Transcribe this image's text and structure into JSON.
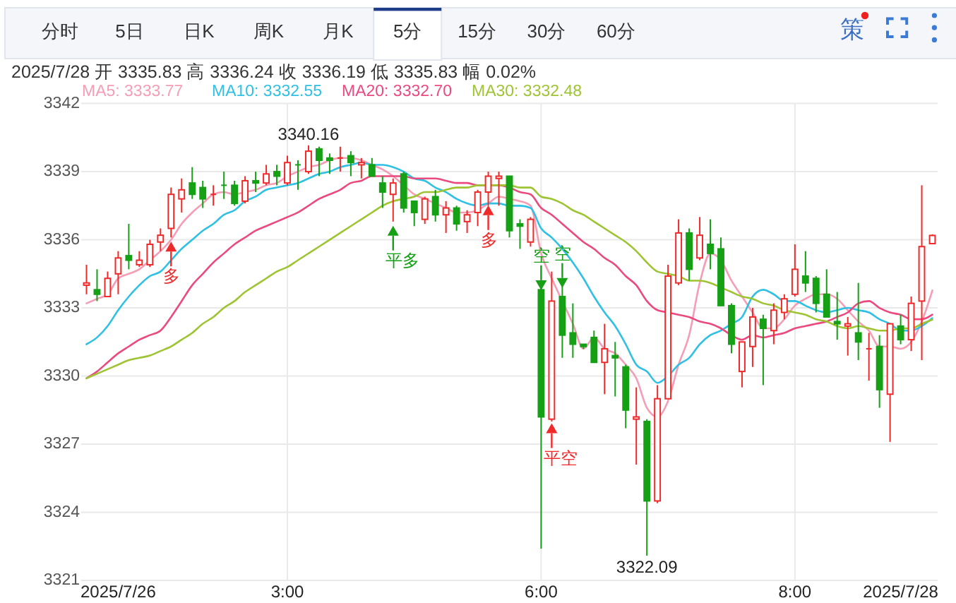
{
  "chart_data": {
    "type": "candlestick",
    "subtitle": "2025/7/28 开 3335.83 高 3336.24 收 3336.19 低 3335.83 幅 0.02%",
    "categories": [
      null,
      null,
      null,
      "2025/7/26",
      null,
      null,
      null,
      null,
      null,
      null,
      null,
      null,
      null,
      null,
      null,
      null,
      null,
      null,
      null,
      "3:00",
      null,
      null,
      null,
      null,
      null,
      null,
      null,
      null,
      null,
      null,
      null,
      null,
      null,
      null,
      null,
      null,
      null,
      null,
      null,
      null,
      null,
      null,
      null,
      "6:00",
      null,
      null,
      null,
      null,
      null,
      null,
      null,
      null,
      null,
      null,
      null,
      null,
      null,
      null,
      null,
      null,
      null,
      null,
      null,
      null,
      null,
      null,
      null,
      "8:00",
      null,
      null,
      null,
      null,
      null,
      null,
      null,
      null,
      null,
      "2025/7/28",
      null,
      null,
      null
    ],
    "ohlc": [
      [
        3334.0,
        3334.9,
        3333.6,
        3334.1
      ],
      [
        3333.8,
        3334.7,
        3333.3,
        3333.6
      ],
      [
        3333.5,
        3334.6,
        3333.5,
        3334.3
      ],
      [
        3334.5,
        3335.5,
        3333.6,
        3335.2
      ],
      [
        3335.3,
        3336.7,
        3334.7,
        3335.1
      ],
      [
        3334.9,
        3335.5,
        3334.8,
        3335.1
      ],
      [
        3334.9,
        3336.0,
        3334.8,
        3335.8
      ],
      [
        3335.9,
        3336.5,
        3335.5,
        3336.2
      ],
      [
        3336.5,
        3338.3,
        3336.1,
        3338.0
      ],
      [
        3337.8,
        3338.7,
        3337.2,
        3338.2
      ],
      [
        3338.5,
        3339.2,
        3337.8,
        3338.0
      ],
      [
        3338.3,
        3338.6,
        3337.4,
        3337.8
      ],
      [
        3338.0,
        3338.4,
        3337.5,
        3338.0
      ],
      [
        3338.4,
        3339.0,
        3337.8,
        3338.4
      ],
      [
        3338.4,
        3338.6,
        3337.5,
        3337.6
      ],
      [
        3337.7,
        3338.8,
        3337.6,
        3338.6
      ],
      [
        3338.6,
        3339.0,
        3338.1,
        3338.5
      ],
      [
        3338.5,
        3339.3,
        3338.4,
        3338.9
      ],
      [
        3339.0,
        3339.3,
        3338.4,
        3338.8
      ],
      [
        3338.5,
        3339.7,
        3338.4,
        3339.4
      ],
      [
        3339.3,
        3339.5,
        3338.2,
        3339.3
      ],
      [
        3339.0,
        3340.16,
        3338.9,
        3339.9
      ],
      [
        3340.0,
        3340.1,
        3338.8,
        3339.5
      ],
      [
        3339.6,
        3339.8,
        3338.9,
        3339.5
      ],
      [
        3339.6,
        3340.1,
        3339.0,
        3339.6
      ],
      [
        3339.7,
        3339.9,
        3338.8,
        3339.4
      ],
      [
        3339.3,
        3339.6,
        3338.7,
        3339.4
      ],
      [
        3339.3,
        3339.6,
        3338.8,
        3338.8
      ],
      [
        3338.5,
        3338.8,
        3337.4,
        3338.1
      ],
      [
        3338.0,
        3338.7,
        3336.8,
        3338.5
      ],
      [
        3338.9,
        3339.0,
        3337.2,
        3337.4
      ],
      [
        3337.7,
        3337.7,
        3336.6,
        3337.2
      ],
      [
        3336.9,
        3337.9,
        3336.7,
        3337.8
      ],
      [
        3337.9,
        3338.2,
        3336.8,
        3337.1
      ],
      [
        3337.1,
        3337.7,
        3336.3,
        3337.4
      ],
      [
        3337.4,
        3337.5,
        3336.4,
        3336.7
      ],
      [
        3336.8,
        3337.3,
        3336.3,
        3337.1
      ],
      [
        3337.2,
        3338.2,
        3336.6,
        3338.1
      ],
      [
        3338.1,
        3339.0,
        3337.5,
        3338.8
      ],
      [
        3338.7,
        3339.0,
        3337.5,
        3338.8
      ],
      [
        3338.8,
        3338.8,
        3336.1,
        3336.4
      ],
      [
        3336.7,
        3336.9,
        3335.6,
        3336.6
      ],
      [
        3335.9,
        3337.0,
        3335.7,
        3336.9
      ],
      [
        3333.8,
        3333.9,
        3322.4,
        3328.2
      ],
      [
        3328.1,
        3334.6,
        3328.0,
        3333.3
      ],
      [
        3333.5,
        3334.0,
        3330.8,
        3331.8
      ],
      [
        3331.9,
        3333.2,
        3330.8,
        3331.4
      ],
      [
        3331.4,
        3331.4,
        3331.2,
        3331.3
      ],
      [
        3331.7,
        3332.0,
        3330.6,
        3330.6
      ],
      [
        3330.6,
        3332.3,
        3329.2,
        3331.2
      ],
      [
        3330.9,
        3331.5,
        3329.1,
        3330.8
      ],
      [
        3330.4,
        3330.5,
        3327.7,
        3328.5
      ],
      [
        3328.1,
        3329.5,
        3326.1,
        3328.2
      ],
      [
        3328.0,
        3328.1,
        3322.09,
        3324.5
      ],
      [
        3324.5,
        3329.6,
        3324.4,
        3329.0
      ],
      [
        3329.0,
        3334.9,
        3329.0,
        3334.4
      ],
      [
        3334.1,
        3336.9,
        3334.0,
        3336.3
      ],
      [
        3336.3,
        3336.5,
        3334.2,
        3334.7
      ],
      [
        3335.2,
        3337.0,
        3335.1,
        3336.2
      ],
      [
        3335.8,
        3336.9,
        3334.7,
        3335.4
      ],
      [
        3335.6,
        3336.1,
        3333.1,
        3333.1
      ],
      [
        3333.1,
        3333.2,
        3331.0,
        3331.4
      ],
      [
        3330.2,
        3331.5,
        3329.5,
        3331.5
      ],
      [
        3331.3,
        3333.0,
        3330.4,
        3332.6
      ],
      [
        3332.5,
        3332.7,
        3329.6,
        3332.1
      ],
      [
        3332.0,
        3333.2,
        3331.4,
        3332.9
      ],
      [
        3332.8,
        3333.6,
        3332.5,
        3333.4
      ],
      [
        3333.6,
        3335.8,
        3333.5,
        3334.7
      ],
      [
        3334.4,
        3335.5,
        3333.7,
        3334.1
      ],
      [
        3334.3,
        3334.4,
        3332.8,
        3333.2
      ],
      [
        3333.6,
        3334.7,
        3332.6,
        3332.6
      ],
      [
        3332.4,
        3333.7,
        3331.6,
        3332.3
      ],
      [
        3332.2,
        3332.6,
        3330.9,
        3332.3
      ],
      [
        3331.9,
        3334.1,
        3330.7,
        3331.5
      ],
      [
        3331.2,
        3331.9,
        3329.8,
        3331.2
      ],
      [
        3331.3,
        3331.8,
        3328.6,
        3329.4
      ],
      [
        3329.2,
        3332.3,
        3327.1,
        3332.3
      ],
      [
        3332.2,
        3332.7,
        3331.4,
        3331.6
      ],
      [
        3331.6,
        3333.5,
        3331.1,
        3333.2
      ],
      [
        3333.3,
        3338.4,
        3330.7,
        3335.7
      ],
      [
        3335.83,
        3336.24,
        3335.83,
        3336.19
      ]
    ],
    "colors": [
      "#f02a2a",
      "#15a015",
      "#f02a2a",
      "#f02a2a",
      "#15a015",
      "#f02a2a",
      "#f02a2a",
      "#f02a2a",
      "#f02a2a",
      "#f02a2a",
      "#15a015",
      "#15a015",
      "#f02a2a",
      "#15a015",
      "#15a015",
      "#f02a2a",
      "#15a015",
      "#f02a2a",
      "#15a015",
      "#f02a2a",
      "#15a015",
      "#f02a2a",
      "#15a015",
      "#15a015",
      "#f02a2a",
      "#15a015",
      "#f02a2a",
      "#15a015",
      "#15a015",
      "#f02a2a",
      "#15a015",
      "#15a015",
      "#f02a2a",
      "#15a015",
      "#f02a2a",
      "#15a015",
      "#f02a2a",
      "#f02a2a",
      "#f02a2a",
      "#f02a2a",
      "#15a015",
      "#15a015",
      "#f02a2a",
      "#15a015",
      "#f02a2a",
      "#15a015",
      "#15a015",
      "#15a015",
      "#15a015",
      "#f02a2a",
      "#15a015",
      "#15a015",
      "#f02a2a",
      "#15a015",
      "#f02a2a",
      "#f02a2a",
      "#f02a2a",
      "#15a015",
      "#f02a2a",
      "#15a015",
      "#15a015",
      "#15a015",
      "#f02a2a",
      "#f02a2a",
      "#15a015",
      "#f02a2a",
      "#f02a2a",
      "#f02a2a",
      "#15a015",
      "#15a015",
      "#15a015",
      "#15a015",
      "#f02a2a",
      "#15a015",
      "#f02a2a",
      "#15a015",
      "#f02a2a",
      "#15a015",
      "#f02a2a",
      "#f02a2a",
      "#f02a2a"
    ],
    "series": [
      {
        "type": "line",
        "name": "MA5: 3333.77",
        "color": "#f59db5",
        "values": [
          3333.2,
          3333.4,
          3333.6,
          3334.3,
          3334.5,
          3334.7,
          3335.1,
          3335.5,
          3336.0,
          3336.7,
          3337.2,
          3337.6,
          3338.0,
          3338.1,
          3338.0,
          3338.1,
          3338.2,
          3338.4,
          3338.5,
          3338.8,
          3339.0,
          3339.2,
          3339.3,
          3339.5,
          3339.6,
          3339.6,
          3339.5,
          3339.3,
          3339.1,
          3338.8,
          3338.4,
          3338.0,
          3337.8,
          3337.6,
          3337.4,
          3337.2,
          3337.2,
          3337.3,
          3337.6,
          3337.9,
          3337.8,
          3337.7,
          3337.5,
          3335.4,
          3334.3,
          3333.3,
          3332.3,
          3331.2,
          3331.7,
          3331.2,
          3331.0,
          3330.5,
          3329.9,
          3328.6,
          3328.2,
          3328.9,
          3330.5,
          3331.8,
          3334.1,
          3335.4,
          3335.1,
          3334.2,
          3333.5,
          3332.8,
          3332.1,
          3332.1,
          3332.5,
          3333.1,
          3333.4,
          3333.6,
          3333.6,
          3333.4,
          3332.9,
          3332.4,
          3332.0,
          3331.3,
          3331.3,
          3331.2,
          3331.5,
          3332.4,
          3333.77
        ]
      },
      {
        "type": "line",
        "name": "MA10: 3332.55",
        "color": "#2fc0e4",
        "values": [
          3331.4,
          3331.7,
          3332.2,
          3332.9,
          3333.5,
          3334.0,
          3334.4,
          3334.6,
          3335.1,
          3335.6,
          3336.0,
          3336.4,
          3336.7,
          3337.1,
          3337.3,
          3337.7,
          3337.9,
          3338.2,
          3338.3,
          3338.4,
          3338.5,
          3338.7,
          3338.9,
          3339.0,
          3339.2,
          3339.3,
          3339.4,
          3339.3,
          3339.3,
          3339.2,
          3339.0,
          3338.7,
          3338.6,
          3338.3,
          3338.1,
          3337.8,
          3337.6,
          3337.5,
          3337.6,
          3337.6,
          3337.5,
          3337.5,
          3337.4,
          3336.5,
          3336.1,
          3335.6,
          3335.0,
          3334.3,
          3333.5,
          3332.8,
          3332.2,
          3331.4,
          3330.5,
          3330.2,
          3329.7,
          3330.0,
          3330.5,
          3330.8,
          3331.4,
          3331.8,
          3332.0,
          3332.3,
          3332.6,
          3333.5,
          3333.8,
          3333.6,
          3333.3,
          3333.3,
          3333.1,
          3332.9,
          3332.8,
          3332.9,
          3333.0,
          3332.9,
          3332.8,
          3332.5,
          3332.3,
          3332.0,
          3332.0,
          3332.2,
          3332.55
        ]
      },
      {
        "type": "line",
        "name": "MA20: 3332.70",
        "color": "#ea4a7e",
        "values": [
          3329.9,
          3330.2,
          3330.6,
          3331.0,
          3331.3,
          3331.6,
          3331.8,
          3332.0,
          3332.6,
          3333.3,
          3334.0,
          3334.5,
          3335.0,
          3335.4,
          3335.8,
          3336.1,
          3336.4,
          3336.6,
          3336.8,
          3337.0,
          3337.2,
          3337.5,
          3337.8,
          3338.0,
          3338.2,
          3338.5,
          3338.6,
          3338.8,
          3338.8,
          3338.8,
          3338.8,
          3338.7,
          3338.7,
          3338.7,
          3338.6,
          3338.5,
          3338.5,
          3338.4,
          3338.4,
          3338.4,
          3338.3,
          3338.1,
          3338.0,
          3337.4,
          3337.1,
          3336.7,
          3336.3,
          3335.9,
          3335.6,
          3335.2,
          3334.9,
          3334.4,
          3334.0,
          3333.3,
          3332.9,
          3332.8,
          3332.7,
          3332.6,
          3332.4,
          3332.3,
          3332.1,
          3331.8,
          3331.6,
          3331.8,
          3331.7,
          3331.8,
          3331.9,
          3332.1,
          3332.2,
          3332.3,
          3332.4,
          3332.6,
          3332.8,
          3333.2,
          3333.3,
          3333.0,
          3332.8,
          3332.7,
          3332.5,
          3332.5,
          3332.7
        ]
      },
      {
        "type": "line",
        "name": "MA30: 3332.48",
        "color": "#9fc433",
        "values": [
          3329.9,
          3330.1,
          3330.3,
          3330.5,
          3330.7,
          3330.8,
          3330.9,
          3331.1,
          3331.3,
          3331.6,
          3331.9,
          3332.3,
          3332.6,
          3333.0,
          3333.3,
          3333.7,
          3334.0,
          3334.3,
          3334.6,
          3334.8,
          3335.1,
          3335.4,
          3335.7,
          3336.0,
          3336.3,
          3336.6,
          3336.9,
          3337.2,
          3337.5,
          3337.7,
          3337.8,
          3337.9,
          3338.1,
          3338.1,
          3338.2,
          3338.3,
          3338.3,
          3338.4,
          3338.4,
          3338.4,
          3338.4,
          3338.3,
          3338.3,
          3337.9,
          3337.8,
          3337.6,
          3337.3,
          3337.1,
          3336.8,
          3336.5,
          3336.2,
          3335.9,
          3335.5,
          3335.0,
          3334.6,
          3334.5,
          3334.4,
          3334.2,
          3334.2,
          3334.1,
          3333.9,
          3333.7,
          3333.5,
          3333.4,
          3333.2,
          3333.1,
          3332.9,
          3332.8,
          3332.7,
          3332.5,
          3332.4,
          3332.2,
          3332.1,
          3332.2,
          3332.1,
          3332.0,
          3332.0,
          3332.1,
          3332.1,
          3332.3,
          3332.48
        ]
      },
      {
        "type": "scatter",
        "color": "#f02a2a",
        "marker": "triangle",
        "values": [
          null,
          null,
          null,
          null,
          null,
          null,
          null,
          null,
          3335.7,
          null,
          null,
          null,
          null,
          null,
          null,
          null,
          null,
          null,
          null,
          null,
          null,
          null,
          null,
          null,
          null,
          null,
          null,
          null,
          null,
          null,
          null,
          null,
          null,
          null,
          null,
          null,
          null,
          null,
          3337.3,
          null,
          null,
          null,
          null,
          null,
          null,
          null,
          null,
          null,
          null,
          null,
          null,
          null,
          null,
          null,
          null,
          null,
          null,
          null,
          null,
          null,
          null,
          null,
          null,
          null,
          null,
          null,
          null,
          null,
          null,
          null,
          null,
          null,
          null,
          null,
          null,
          null,
          null,
          null,
          null,
          null,
          null
        ],
        "value_labels": [
          null,
          null,
          null,
          null,
          null,
          null,
          null,
          null,
          "多",
          null,
          null,
          null,
          null,
          null,
          null,
          null,
          null,
          null,
          null,
          null,
          null,
          null,
          null,
          null,
          null,
          null,
          null,
          null,
          null,
          null,
          null,
          null,
          null,
          null,
          null,
          null,
          null,
          null,
          "多",
          null,
          null,
          null,
          null,
          null,
          null,
          null,
          null,
          null,
          null,
          null,
          null,
          null,
          null,
          null,
          null,
          null,
          null,
          null,
          null,
          null,
          null,
          null,
          null,
          null,
          null,
          null,
          null,
          null,
          null,
          null,
          null,
          null,
          null,
          null,
          null,
          null,
          null,
          null,
          null,
          null,
          null
        ]
      },
      {
        "type": "scatter",
        "color": "#15a015",
        "marker": "triangle",
        "values": [
          null,
          null,
          null,
          null,
          null,
          null,
          null,
          null,
          null,
          null,
          null,
          null,
          null,
          null,
          null,
          null,
          null,
          null,
          null,
          null,
          null,
          null,
          null,
          null,
          null,
          null,
          null,
          null,
          null,
          3336.4,
          null,
          null,
          null,
          null,
          null,
          null,
          null,
          null,
          null,
          null,
          null,
          null,
          null,
          null,
          null,
          null,
          null,
          null,
          null,
          null,
          null,
          null,
          null,
          null,
          null,
          null,
          null,
          null,
          null,
          null,
          null,
          null,
          null,
          null,
          null,
          null,
          null,
          null,
          null,
          null,
          null,
          null,
          null,
          null,
          null,
          null,
          null,
          null,
          null,
          null,
          null
        ],
        "value_labels": [
          null,
          null,
          null,
          null,
          null,
          null,
          null,
          null,
          null,
          null,
          null,
          null,
          null,
          null,
          null,
          null,
          null,
          null,
          null,
          null,
          null,
          null,
          null,
          null,
          null,
          null,
          null,
          null,
          null,
          "平多",
          null,
          null,
          null,
          null,
          null,
          null,
          null,
          null,
          null,
          null,
          null,
          null,
          null,
          null,
          null,
          null,
          null,
          null,
          null,
          null,
          null,
          null,
          null,
          null,
          null,
          null,
          null,
          null,
          null,
          null,
          null,
          null,
          null,
          null,
          null,
          null,
          null,
          null,
          null,
          null,
          null,
          null,
          null,
          null,
          null,
          null,
          null,
          null,
          null,
          null,
          null
        ]
      },
      {
        "type": "scatter",
        "color": "#15a015",
        "marker": "triangle",
        "values": [
          null,
          null,
          null,
          null,
          null,
          null,
          null,
          null,
          null,
          null,
          null,
          null,
          null,
          null,
          null,
          null,
          null,
          null,
          null,
          null,
          null,
          null,
          null,
          null,
          null,
          null,
          null,
          null,
          null,
          null,
          null,
          null,
          null,
          null,
          null,
          null,
          null,
          null,
          null,
          null,
          null,
          null,
          null,
          3334.0,
          null,
          3334.1,
          null,
          null,
          null,
          null,
          null,
          null,
          null,
          null,
          null,
          null,
          null,
          null,
          null,
          null,
          null,
          null,
          null,
          null,
          null,
          null,
          null,
          null,
          null,
          null,
          null,
          null,
          null,
          null,
          null,
          null,
          null,
          null,
          null,
          null,
          null
        ],
        "value_labels": [
          null,
          null,
          null,
          null,
          null,
          null,
          null,
          null,
          null,
          null,
          null,
          null,
          null,
          null,
          null,
          null,
          null,
          null,
          null,
          null,
          null,
          null,
          null,
          null,
          null,
          null,
          null,
          null,
          null,
          null,
          null,
          null,
          null,
          null,
          null,
          null,
          null,
          null,
          null,
          null,
          null,
          null,
          null,
          "空",
          null,
          "空",
          null,
          null,
          null,
          null,
          null,
          null,
          null,
          null,
          null,
          null,
          null,
          null,
          null,
          null,
          null,
          null,
          null,
          null,
          null,
          null,
          null,
          null,
          null,
          null,
          null,
          null,
          null,
          null,
          null,
          null,
          null,
          null,
          null,
          null,
          null
        ]
      },
      {
        "type": "scatter",
        "color": "#f02a2a",
        "marker": "triangle",
        "values": [
          null,
          null,
          null,
          null,
          null,
          null,
          null,
          null,
          null,
          null,
          null,
          null,
          null,
          null,
          null,
          null,
          null,
          null,
          null,
          null,
          null,
          null,
          null,
          null,
          null,
          null,
          null,
          null,
          null,
          null,
          null,
          null,
          null,
          null,
          null,
          null,
          null,
          null,
          null,
          null,
          null,
          null,
          null,
          null,
          3327.7,
          null,
          null,
          null,
          null,
          null,
          null,
          null,
          null,
          null,
          null,
          null,
          null,
          null,
          null,
          null,
          null,
          null,
          null,
          null,
          null,
          null,
          null,
          null,
          null,
          null,
          null,
          null,
          null,
          null,
          null,
          null,
          null,
          null,
          null,
          null,
          null
        ],
        "value_labels": [
          null,
          null,
          null,
          null,
          null,
          null,
          null,
          null,
          null,
          null,
          null,
          null,
          null,
          null,
          null,
          null,
          null,
          null,
          null,
          null,
          null,
          null,
          null,
          null,
          null,
          null,
          null,
          null,
          null,
          null,
          null,
          null,
          null,
          null,
          null,
          null,
          null,
          null,
          null,
          null,
          null,
          null,
          null,
          null,
          "平空",
          null,
          null,
          null,
          null,
          null,
          null,
          null,
          null,
          null,
          null,
          null,
          null,
          null,
          null,
          null,
          null,
          null,
          null,
          null,
          null,
          null,
          null,
          null,
          null,
          null,
          null,
          null,
          null,
          null,
          null,
          null,
          null,
          null,
          null,
          null,
          null
        ]
      }
    ],
    "ylim": [
      3321,
      3342
    ],
    "yticks": [
      3321,
      3324,
      3327,
      3330,
      3333,
      3336,
      3339,
      3342
    ],
    "grid": true,
    "legend": "top left",
    "annotations": [
      "分时",
      "5日",
      "日K",
      "周K",
      "月K",
      "5分",
      "15分",
      "30分",
      "60分",
      "策",
      {
        "text": "3340.16",
        "y": 3340.16
      },
      {
        "text": "3322.09",
        "y": 3322.09
      }
    ]
  }
}
